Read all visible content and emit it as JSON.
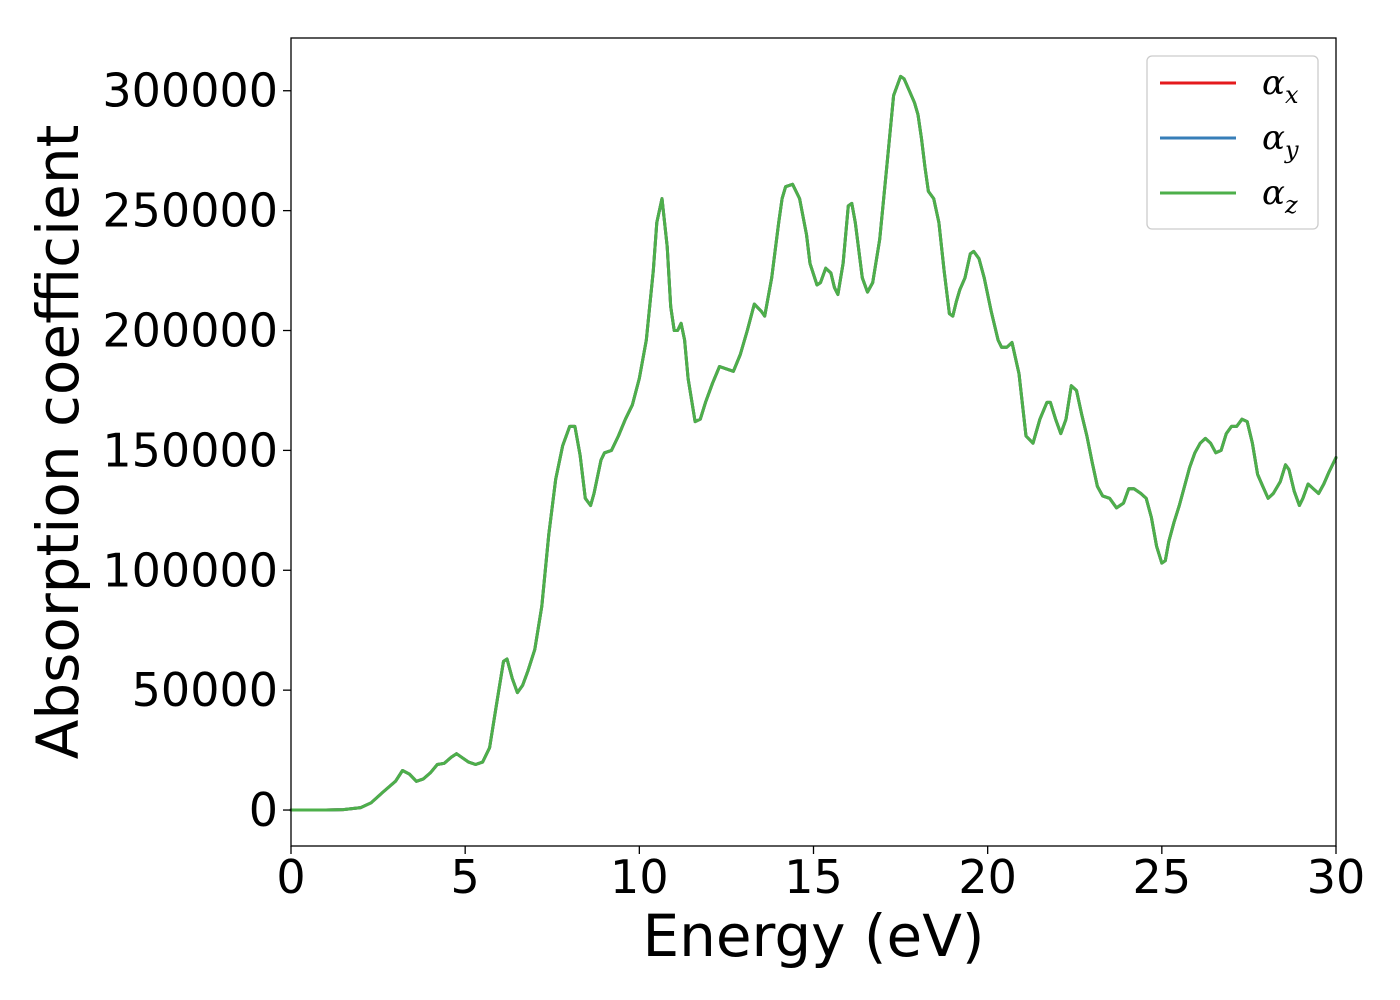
{
  "chart_data": {
    "type": "line",
    "title": "",
    "xlabel": "Energy (eV)",
    "ylabel": "Absorption coefficient",
    "xlim": [
      0,
      30
    ],
    "ylim": [
      -15000,
      322000
    ],
    "xticks": [
      0,
      5,
      10,
      15,
      20,
      25,
      30
    ],
    "xtick_labels": [
      "0",
      "5",
      "10",
      "15",
      "20",
      "25",
      "30"
    ],
    "yticks": [
      0,
      50000,
      100000,
      150000,
      200000,
      250000,
      300000
    ],
    "ytick_labels": [
      "0",
      "50000",
      "100000",
      "150000",
      "200000",
      "250000",
      "300000"
    ],
    "grid": false,
    "legend_position": "top-right",
    "x": [
      0,
      0.5,
      1.0,
      1.5,
      2.0,
      2.3,
      2.6,
      3.0,
      3.2,
      3.4,
      3.6,
      3.8,
      4.0,
      4.2,
      4.4,
      4.6,
      4.75,
      4.9,
      5.1,
      5.3,
      5.5,
      5.7,
      5.9,
      6.1,
      6.2,
      6.35,
      6.5,
      6.65,
      6.8,
      7.0,
      7.2,
      7.4,
      7.6,
      7.8,
      8.0,
      8.15,
      8.3,
      8.45,
      8.6,
      8.7,
      8.9,
      9.0,
      9.2,
      9.4,
      9.6,
      9.8,
      10.0,
      10.2,
      10.4,
      10.5,
      10.65,
      10.8,
      10.9,
      11.0,
      11.1,
      11.2,
      11.3,
      11.4,
      11.6,
      11.75,
      11.9,
      12.1,
      12.3,
      12.5,
      12.7,
      12.9,
      13.1,
      13.3,
      13.5,
      13.6,
      13.8,
      14.0,
      14.1,
      14.2,
      14.4,
      14.6,
      14.8,
      14.9,
      15.1,
      15.2,
      15.35,
      15.5,
      15.6,
      15.7,
      15.85,
      16.0,
      16.1,
      16.2,
      16.4,
      16.55,
      16.7,
      16.9,
      17.1,
      17.3,
      17.5,
      17.6,
      17.75,
      17.9,
      18.0,
      18.1,
      18.2,
      18.3,
      18.45,
      18.6,
      18.75,
      18.9,
      19.0,
      19.1,
      19.2,
      19.35,
      19.5,
      19.6,
      19.75,
      19.9,
      20.1,
      20.3,
      20.4,
      20.55,
      20.7,
      20.9,
      21.1,
      21.3,
      21.5,
      21.7,
      21.8,
      21.95,
      22.1,
      22.25,
      22.4,
      22.55,
      22.7,
      22.85,
      23.0,
      23.15,
      23.3,
      23.5,
      23.7,
      23.9,
      24.05,
      24.2,
      24.4,
      24.55,
      24.7,
      24.85,
      25.0,
      25.1,
      25.2,
      25.35,
      25.5,
      25.65,
      25.8,
      25.95,
      26.1,
      26.25,
      26.4,
      26.55,
      26.7,
      26.85,
      27.0,
      27.15,
      27.3,
      27.45,
      27.6,
      27.75,
      27.9,
      28.05,
      28.2,
      28.4,
      28.55,
      28.65,
      28.8,
      28.95,
      29.05,
      29.2,
      29.35,
      29.5,
      29.65,
      29.8,
      30.0
    ],
    "y": [
      0,
      0,
      0,
      200,
      1000,
      3000,
      7000,
      12000,
      16500,
      15000,
      12000,
      13000,
      15500,
      19000,
      19500,
      22000,
      23500,
      22000,
      20000,
      19000,
      20000,
      26000,
      44000,
      62000,
      63000,
      55000,
      49000,
      52000,
      58000,
      67000,
      85000,
      115000,
      138000,
      152000,
      160000,
      160000,
      148000,
      130000,
      127000,
      132000,
      146000,
      149000,
      150000,
      156000,
      163000,
      169000,
      180000,
      196000,
      225000,
      245000,
      255000,
      235000,
      210000,
      200000,
      200000,
      203000,
      196000,
      180000,
      162000,
      163000,
      170000,
      178000,
      185000,
      184000,
      183000,
      190000,
      200000,
      211000,
      208000,
      206000,
      222000,
      245000,
      255000,
      260000,
      261000,
      255000,
      240000,
      228000,
      219000,
      220000,
      226000,
      224000,
      218000,
      215000,
      228000,
      252000,
      253000,
      245000,
      222000,
      216000,
      220000,
      238000,
      268000,
      298000,
      306000,
      305000,
      300000,
      295000,
      290000,
      280000,
      268000,
      258000,
      255000,
      245000,
      225000,
      207000,
      206000,
      212000,
      217000,
      222000,
      232000,
      233000,
      230000,
      222000,
      208000,
      196000,
      193000,
      193000,
      195000,
      182000,
      156000,
      153000,
      163000,
      170000,
      170000,
      163000,
      157000,
      163000,
      177000,
      175000,
      165000,
      156000,
      145000,
      135000,
      131000,
      130000,
      126000,
      128000,
      134000,
      134000,
      132000,
      130000,
      122000,
      110000,
      103000,
      104000,
      112000,
      120000,
      127000,
      135000,
      143000,
      149000,
      153000,
      155000,
      153000,
      149000,
      150000,
      157000,
      160000,
      160000,
      163000,
      162000,
      153000,
      140000,
      135000,
      130000,
      132000,
      137000,
      144000,
      142000,
      133000,
      127000,
      130000,
      136000,
      134000,
      132000,
      136000,
      141000,
      147000
    ],
    "series": [
      {
        "name": "α_x",
        "label_main": "α",
        "label_sub": "x",
        "color": "#e41a1c"
      },
      {
        "name": "α_y",
        "label_main": "α",
        "label_sub": "y",
        "color": "#377eb8"
      },
      {
        "name": "α_z",
        "label_main": "α",
        "label_sub": "z",
        "color": "#4daf4a"
      }
    ]
  }
}
